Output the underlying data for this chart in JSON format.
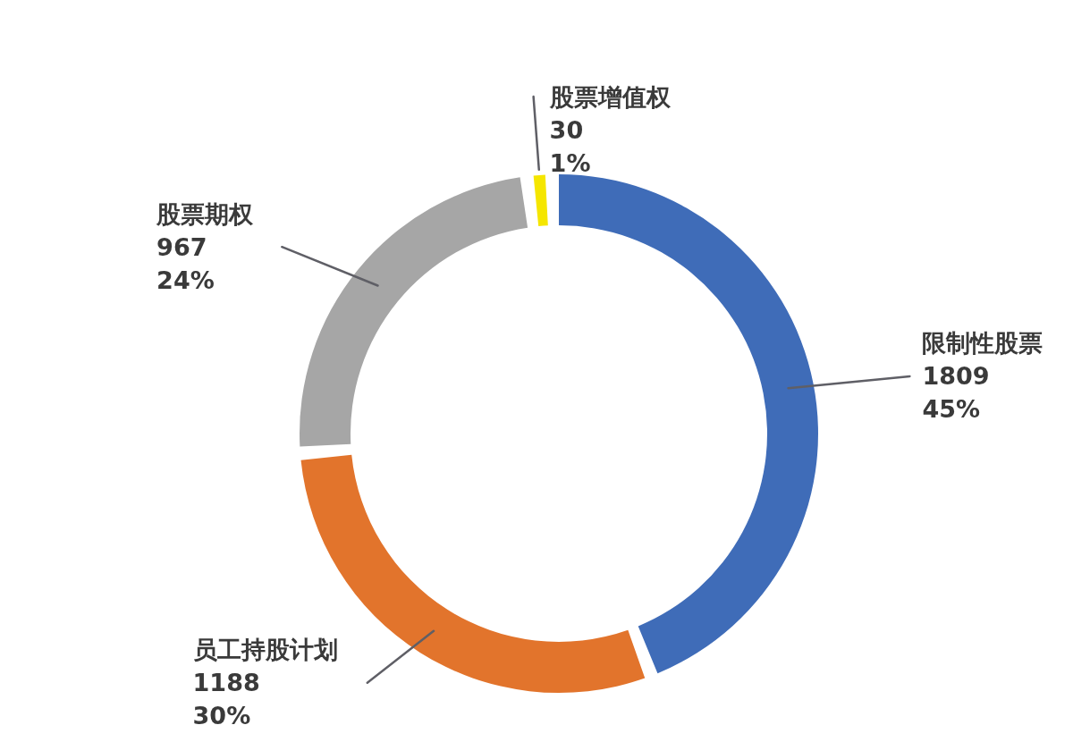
{
  "chart_data": {
    "type": "donut",
    "categories": [
      "限制性股票",
      "员工持股计划",
      "股票期权",
      "股票增值权"
    ],
    "values": [
      1809,
      1188,
      967,
      30
    ],
    "colors": [
      "#3f6cb8",
      "#e2742c",
      "#a6a6a6",
      "#f5e600"
    ],
    "value_labels": [
      "1809\n45%",
      "1188\n30%",
      "967\n24%",
      "30\n1%"
    ]
  }
}
